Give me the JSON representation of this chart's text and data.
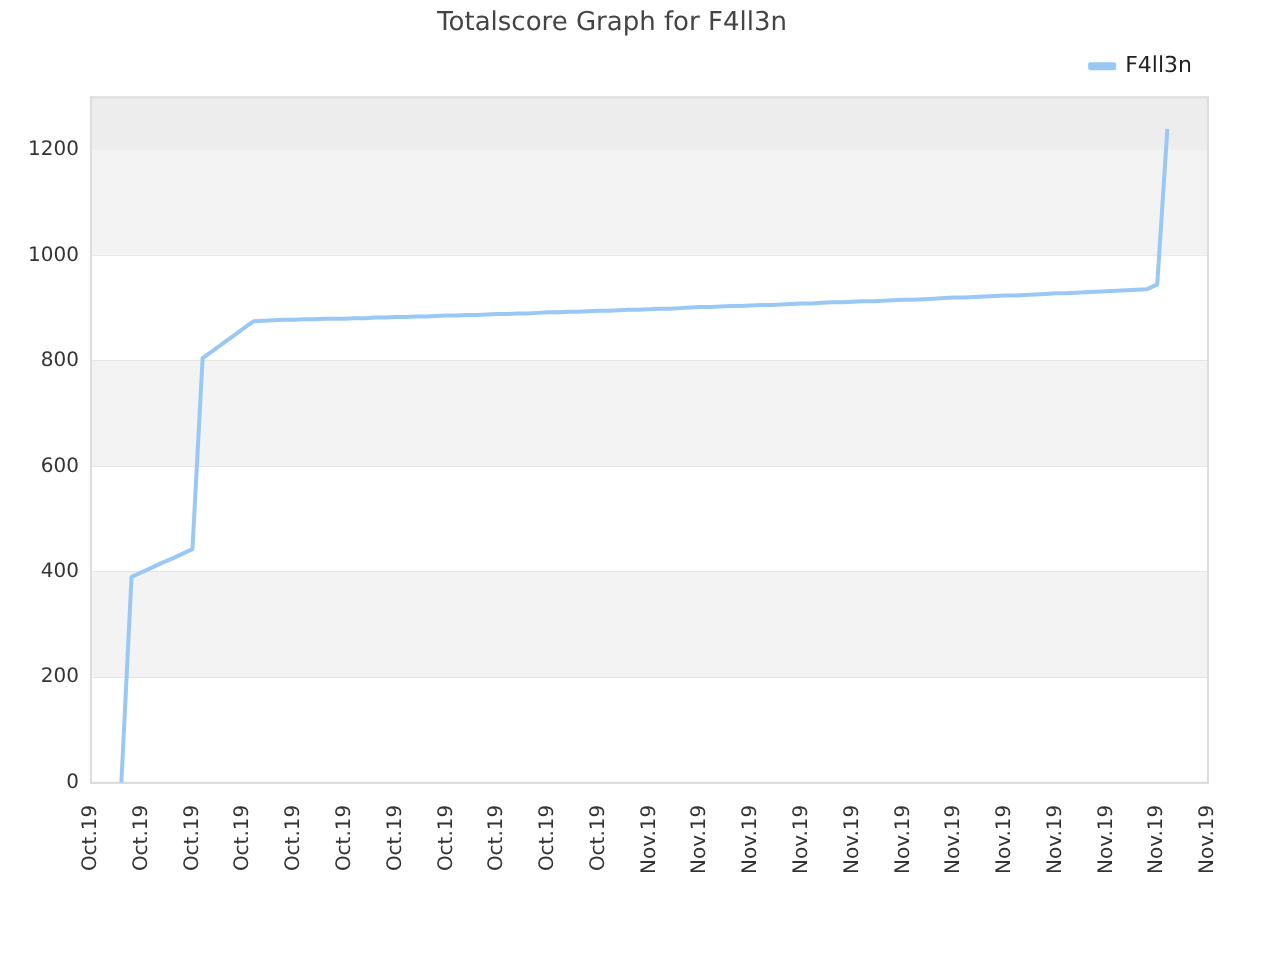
{
  "chart_data": {
    "type": "line",
    "title": "Totalscore Graph for F4ll3n",
    "categories": [
      "Oct.19",
      null,
      null,
      null,
      null,
      "Oct.19",
      null,
      null,
      null,
      null,
      "Oct.19",
      null,
      null,
      null,
      null,
      "Oct.19",
      null,
      null,
      null,
      null,
      "Oct.19",
      null,
      null,
      null,
      null,
      "Oct.19",
      null,
      null,
      null,
      null,
      "Oct.19",
      null,
      null,
      null,
      null,
      "Oct.19",
      null,
      null,
      null,
      null,
      "Oct.19",
      null,
      null,
      null,
      null,
      "Oct.19",
      null,
      null,
      null,
      null,
      "Oct.19",
      null,
      null,
      null,
      null,
      "Nov.19",
      null,
      null,
      null,
      null,
      "Nov.19",
      null,
      null,
      null,
      null,
      "Nov.19",
      null,
      null,
      null,
      null,
      "Nov.19",
      null,
      null,
      null,
      null,
      "Nov.19",
      null,
      null,
      null,
      null,
      "Nov.19",
      null,
      null,
      null,
      null,
      "Nov.19",
      null,
      null,
      null,
      null,
      "Nov.19",
      null,
      null,
      null,
      null,
      "Nov.19",
      null,
      null,
      null,
      null,
      "Nov.19",
      null,
      null,
      null,
      null,
      "Nov.19",
      null,
      null,
      null,
      null,
      "Nov.19"
    ],
    "ylim": [
      0,
      1300
    ],
    "yticks": [
      0,
      200,
      400,
      600,
      800,
      1000,
      1200
    ],
    "grid": "y",
    "legend": "top right",
    "marker": "none",
    "line_style": "solid",
    "bands": [
      {
        "axis": "y",
        "from": 200,
        "to": 400,
        "color": "#f3f3f3"
      },
      {
        "axis": "y",
        "from": 600,
        "to": 800,
        "color": "#f3f3f3"
      },
      {
        "axis": "y",
        "from": 1000,
        "to": 1200,
        "color": "#f3f3f3"
      },
      {
        "axis": "y",
        "from": 1200,
        "to": 1300,
        "color": "#ededed"
      }
    ],
    "series": [
      {
        "name": "F4ll3n",
        "color": "#99c8f5",
        "values": [
          null,
          null,
          null,
          0,
          390,
          399,
          408,
          417,
          425,
          434,
          443,
          805,
          819,
          833,
          847,
          861,
          875,
          876,
          877,
          878,
          878,
          879,
          879,
          880,
          880,
          880,
          881,
          881,
          882,
          882,
          883,
          883,
          884,
          884,
          885,
          886,
          886,
          887,
          887,
          888,
          889,
          889,
          890,
          890,
          891,
          892,
          892,
          893,
          893,
          894,
          895,
          895,
          896,
          897,
          897,
          898,
          899,
          899,
          900,
          901,
          902,
          902,
          903,
          904,
          904,
          905,
          906,
          906,
          907,
          908,
          909,
          909,
          910,
          911,
          911,
          912,
          913,
          913,
          914,
          915,
          916,
          916,
          917,
          918,
          919,
          920,
          920,
          921,
          922,
          923,
          924,
          924,
          925,
          926,
          927,
          928,
          928,
          929,
          930,
          931,
          932,
          933,
          934,
          935,
          936,
          945,
          1240,
          null,
          null,
          null,
          null
        ]
      }
    ]
  }
}
